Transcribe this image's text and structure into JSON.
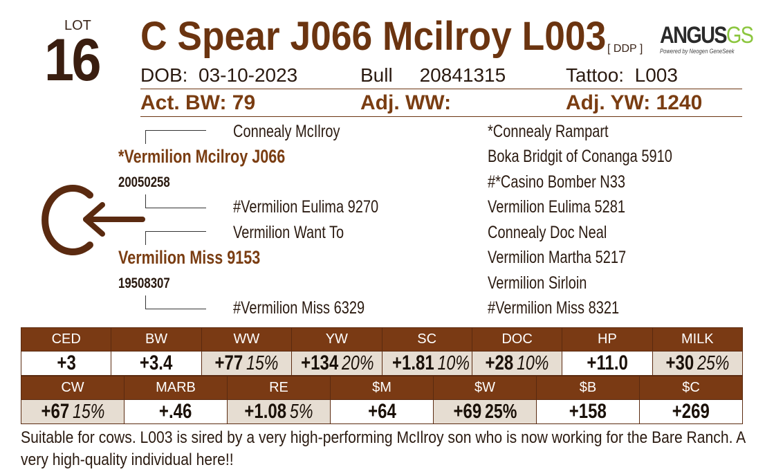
{
  "lot": {
    "label": "LOT",
    "number": "16"
  },
  "animal": {
    "name": "C Spear J066 Mcilroy L003",
    "tag": "[ DDP ]"
  },
  "logo": {
    "brand": "ANGUS",
    "brand_suffix": "GS",
    "tagline": "Powered by Neogen GeneSeek",
    "suffix_color": "#8cc63f"
  },
  "info": {
    "dob_label": "DOB:",
    "dob": "03-10-2023",
    "sex": "Bull",
    "reg": "20841315",
    "tattoo_label": "Tattoo:",
    "tattoo": "L003"
  },
  "performance": {
    "bw": "Act. BW: 79",
    "ww": "Adj. WW:",
    "yw": "Adj. YW: 1240"
  },
  "pedigree": {
    "sire": {
      "name": "*Vermilion Mcilroy J066",
      "reg": "20050258",
      "sire": "Connealy McIlroy",
      "dam": "#Vermilion Eulima 9270"
    },
    "dam": {
      "name": "Vermilion Miss 9153",
      "reg": "19508307",
      "sire": "Vermilion Want To",
      "dam": "#Vermilion Miss 6329"
    },
    "third_gen": [
      "*Connealy Rampart",
      "Boka Bridgit of Conanga 5910",
      "#*Casino Bomber N33",
      "Vermilion Eulima 5281",
      "Connealy Doc Neal",
      "Vermilion Martha 5217",
      "Vermilion Sirloin",
      "#Vermilion Miss 8321"
    ]
  },
  "brand_mark": {
    "letter": "C",
    "arrow": "←"
  },
  "epd_row1": [
    {
      "label": "CED",
      "value": "+3",
      "pct": "",
      "shaded": false
    },
    {
      "label": "BW",
      "value": "+3.4",
      "pct": "",
      "shaded": false
    },
    {
      "label": "WW",
      "value": "+77",
      "pct": "15%",
      "shaded": true
    },
    {
      "label": "YW",
      "value": "+134",
      "pct": "20%",
      "shaded": true
    },
    {
      "label": "SC",
      "value": "+1.81",
      "pct": "10%",
      "shaded": true
    },
    {
      "label": "DOC",
      "value": "+28",
      "pct": "10%",
      "shaded": true
    },
    {
      "label": "HP",
      "value": "+11.0",
      "pct": "",
      "shaded": false
    },
    {
      "label": "MILK",
      "value": "+30",
      "pct": "25%",
      "shaded": true
    }
  ],
  "epd_row2": [
    {
      "label": "CW",
      "value": "+67",
      "pct": "15%",
      "shaded": true
    },
    {
      "label": "MARB",
      "value": "+.46",
      "pct": "",
      "shaded": false
    },
    {
      "label": "RE",
      "value": "+1.08",
      "pct": "5%",
      "shaded": true
    },
    {
      "label": "$M",
      "value": "+64",
      "pct": "",
      "shaded": false
    },
    {
      "label": "$W",
      "value": "+69",
      "pct": "25%",
      "shaded": true
    },
    {
      "label": "$B",
      "value": "+158",
      "pct": "",
      "shaded": false
    },
    {
      "label": "$C",
      "value": "+269",
      "pct": "",
      "shaded": false
    }
  ],
  "comment": "Suitable for cows. L003 is sired by a very high-performing McIlroy son who is now working for the Bare Ranch. A very high-quality individual here!!"
}
